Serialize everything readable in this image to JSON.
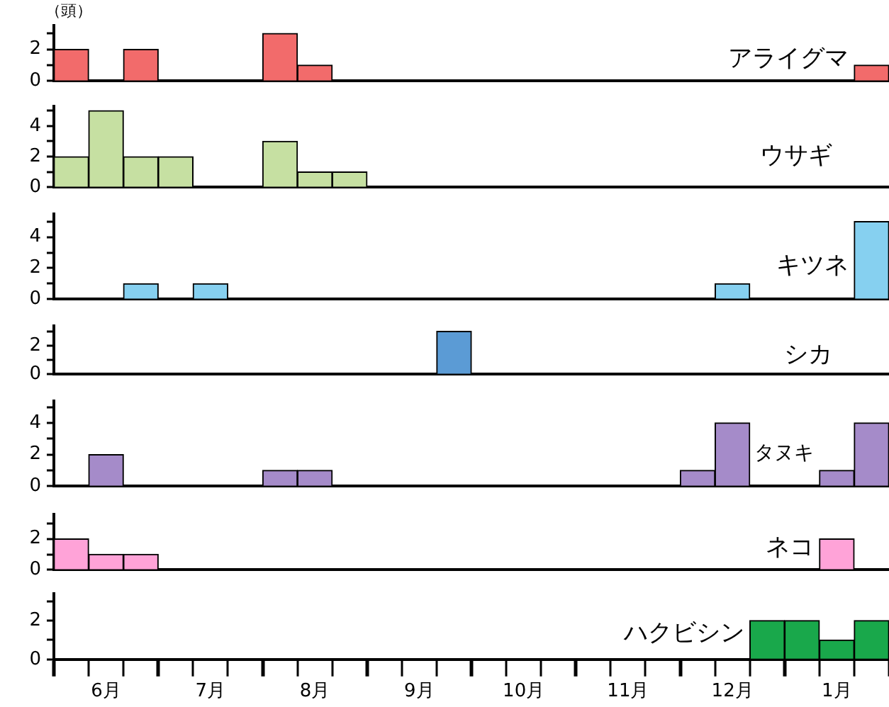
{
  "chart_data": [
    {
      "type": "bar",
      "ylabel": "（頭）",
      "categories": [
        null,
        null,
        null,
        null,
        null,
        null,
        null,
        null,
        null,
        null,
        null,
        null,
        null,
        null,
        null,
        null,
        null,
        null,
        null,
        null,
        null,
        null,
        null,
        null
      ],
      "series": [
        {
          "name": "アライグマ",
          "color": "#f26b6b",
          "values": [
            2,
            null,
            2,
            null,
            null,
            null,
            3,
            1,
            null,
            null,
            null,
            null,
            null,
            null,
            null,
            null,
            null,
            null,
            null,
            null,
            null,
            null,
            null,
            1
          ]
        }
      ],
      "ylim": [
        0,
        3.5
      ],
      "yticks": [
        0,
        {
          "value": 1,
          "label": null
        },
        2,
        {
          "value": 3,
          "label": null
        }
      ],
      "tick_labels": "y",
      "grid": false,
      "legend": "right"
    },
    {
      "type": "bar",
      "categories": [
        null,
        null,
        null,
        null,
        null,
        null,
        null,
        null,
        null,
        null,
        null,
        null,
        null,
        null,
        null,
        null,
        null,
        null,
        null,
        null,
        null,
        null,
        null,
        null
      ],
      "series": [
        {
          "name": "ウサギ",
          "color": "#c6e0a2",
          "values": [
            2,
            5,
            2,
            2,
            null,
            null,
            3,
            1,
            1,
            null,
            null,
            null,
            null,
            null,
            null,
            null,
            null,
            null,
            null,
            null,
            null,
            null,
            null,
            null
          ]
        }
      ],
      "ylim": [
        0,
        5.3
      ],
      "yticks": [
        0,
        {
          "value": 1,
          "label": null
        },
        2,
        {
          "value": 3,
          "label": null
        },
        4,
        {
          "value": 5,
          "label": null
        }
      ],
      "tick_labels": "y",
      "grid": false,
      "legend": "right"
    },
    {
      "type": "bar",
      "categories": [
        null,
        null,
        null,
        null,
        null,
        null,
        null,
        null,
        null,
        null,
        null,
        null,
        null,
        null,
        null,
        null,
        null,
        null,
        null,
        null,
        null,
        null,
        null,
        null
      ],
      "series": [
        {
          "name": "キツネ",
          "color": "#86d0f0",
          "values": [
            null,
            null,
            1,
            null,
            1,
            null,
            null,
            null,
            null,
            null,
            null,
            null,
            null,
            null,
            null,
            null,
            null,
            null,
            null,
            1,
            null,
            null,
            null,
            5
          ]
        }
      ],
      "ylim": [
        0,
        5.5
      ],
      "yticks": [
        0,
        {
          "value": 1,
          "label": null
        },
        2,
        {
          "value": 3,
          "label": null
        },
        4,
        {
          "value": 5,
          "label": null
        }
      ],
      "tick_labels": "y",
      "grid": false,
      "legend": "right"
    },
    {
      "type": "bar",
      "categories": [
        null,
        null,
        null,
        null,
        null,
        null,
        null,
        null,
        null,
        null,
        null,
        null,
        null,
        null,
        null,
        null,
        null,
        null,
        null,
        null,
        null,
        null,
        null,
        null
      ],
      "series": [
        {
          "name": "シカ",
          "color": "#5b9bd5",
          "values": [
            null,
            null,
            null,
            null,
            null,
            null,
            null,
            null,
            null,
            null,
            null,
            3,
            null,
            null,
            null,
            null,
            null,
            null,
            null,
            null,
            null,
            null,
            null,
            null
          ]
        }
      ],
      "ylim": [
        0,
        3.4
      ],
      "yticks": [
        0,
        {
          "value": 1,
          "label": null
        },
        2,
        {
          "value": 3,
          "label": null
        }
      ],
      "tick_labels": "y",
      "grid": false,
      "legend": "right"
    },
    {
      "type": "bar",
      "categories": [
        null,
        null,
        null,
        null,
        null,
        null,
        null,
        null,
        null,
        null,
        null,
        null,
        null,
        null,
        null,
        null,
        null,
        null,
        null,
        null,
        null,
        null,
        null,
        null
      ],
      "series": [
        {
          "name": "タヌキ",
          "color": "#a58bc9",
          "values": [
            null,
            2,
            null,
            null,
            null,
            null,
            1,
            1,
            null,
            null,
            null,
            null,
            null,
            null,
            null,
            null,
            null,
            null,
            1,
            4,
            null,
            null,
            1,
            4
          ]
        }
      ],
      "ylim": [
        0,
        5.4
      ],
      "yticks": [
        0,
        {
          "value": 1,
          "label": null
        },
        2,
        {
          "value": 3,
          "label": null
        },
        4,
        {
          "value": 5,
          "label": null
        }
      ],
      "tick_labels": "y",
      "grid": false,
      "legend": "right"
    },
    {
      "type": "bar",
      "categories": [
        null,
        null,
        null,
        null,
        null,
        null,
        null,
        null,
        null,
        null,
        null,
        null,
        null,
        null,
        null,
        null,
        null,
        null,
        null,
        null,
        null,
        null,
        null,
        null
      ],
      "series": [
        {
          "name": "ネコ",
          "color": "#ffa3d8",
          "values": [
            2,
            1,
            1,
            null,
            null,
            null,
            null,
            null,
            null,
            null,
            null,
            null,
            null,
            null,
            null,
            null,
            null,
            null,
            null,
            null,
            null,
            null,
            2,
            null
          ]
        }
      ],
      "ylim": [
        0,
        3.6
      ],
      "yticks": [
        0,
        {
          "value": 1,
          "label": null
        },
        2,
        {
          "value": 3,
          "label": null
        }
      ],
      "tick_labels": "y",
      "grid": false,
      "legend": "right"
    },
    {
      "type": "bar",
      "categories": [
        null,
        "6月",
        null,
        null,
        "7月",
        null,
        null,
        "8月",
        null,
        null,
        "9月",
        null,
        null,
        "10月",
        null,
        null,
        "11月",
        null,
        null,
        "12月",
        null,
        null,
        "1月",
        null
      ],
      "series": [
        {
          "name": "ハクビシン",
          "color": "#19a84b",
          "values": [
            null,
            null,
            null,
            null,
            null,
            null,
            null,
            null,
            null,
            null,
            null,
            null,
            null,
            null,
            null,
            null,
            null,
            null,
            null,
            null,
            2,
            2,
            1,
            2
          ]
        }
      ],
      "ylim": [
        0,
        3.4
      ],
      "yticks": [
        0,
        {
          "value": 1,
          "label": null
        },
        2,
        {
          "value": 3,
          "label": null
        }
      ],
      "grid": false,
      "legend": "right"
    }
  ]
}
